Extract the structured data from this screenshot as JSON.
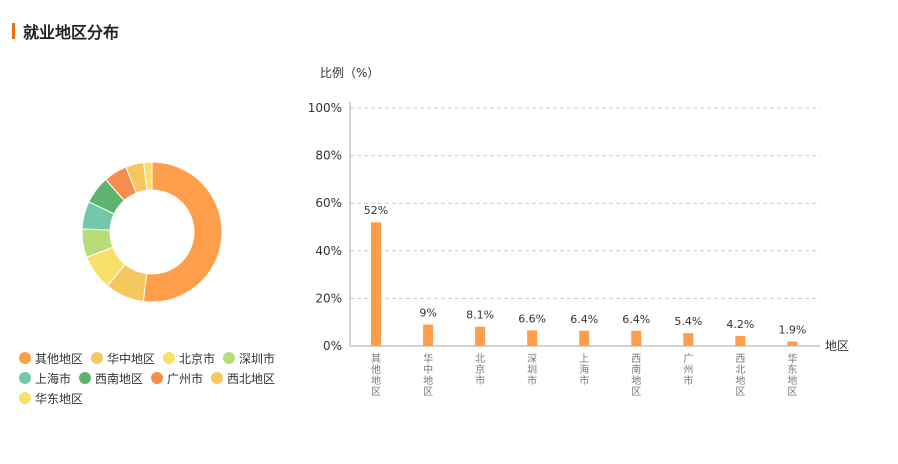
{
  "header": {
    "title": "就业地区分布",
    "accent_color": "#E8720C"
  },
  "chart_data": [
    {
      "type": "pie",
      "variant": "donut",
      "categories": [
        "其他地区",
        "华中地区",
        "北京市",
        "深圳市",
        "上海市",
        "西南地区",
        "广州市",
        "西北地区",
        "华东地区"
      ],
      "values": [
        52,
        9,
        8.1,
        6.6,
        6.4,
        6.4,
        5.4,
        4.2,
        1.9
      ],
      "colors": [
        "#FF9E4A",
        "#F5C85F",
        "#F8E06B",
        "#B8DC78",
        "#72C8A8",
        "#5EB46E",
        "#F58E4C",
        "#F5C85F",
        "#F8E06B"
      ],
      "legend_position": "bottom-left"
    },
    {
      "type": "bar",
      "categories": [
        "其他地区",
        "华中地区",
        "北京市",
        "深圳市",
        "上海市",
        "西南地区",
        "广州市",
        "西北地区",
        "华东地区"
      ],
      "values": [
        52,
        9,
        8.1,
        6.6,
        6.4,
        6.4,
        5.4,
        4.2,
        1.9
      ],
      "data_labels": [
        "52%",
        "9%",
        "8.1%",
        "6.6%",
        "6.4%",
        "6.4%",
        "5.4%",
        "4.2%",
        "1.9%"
      ],
      "ylabel": "比例（%）",
      "xlabel": "地区",
      "ylim": [
        0,
        100
      ],
      "yticks": [
        "0%",
        "20%",
        "40%",
        "60%",
        "80%",
        "100%"
      ],
      "grid": true,
      "bar_color": "#FF9E4A"
    }
  ]
}
